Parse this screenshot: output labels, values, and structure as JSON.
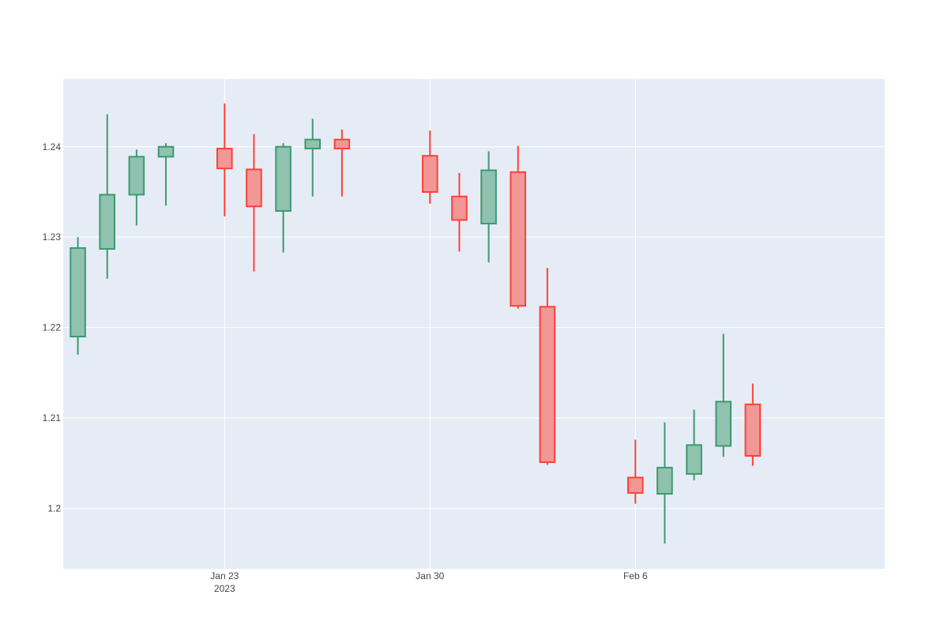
{
  "chart_data": {
    "type": "candlestick",
    "title": "",
    "xlabel": "",
    "ylabel": "",
    "x_ticks": [
      {
        "date": "2023-01-23",
        "label": "Jan 23",
        "sublabel": "2023"
      },
      {
        "date": "2023-01-30",
        "label": "Jan 30",
        "sublabel": ""
      },
      {
        "date": "2023-02-06",
        "label": "Feb 6",
        "sublabel": ""
      }
    ],
    "y_ticks": [
      {
        "value": 1.2,
        "label": "1.2"
      },
      {
        "value": 1.21,
        "label": "1.21"
      },
      {
        "value": 1.22,
        "label": "1.22"
      },
      {
        "value": 1.23,
        "label": "1.23"
      },
      {
        "value": 1.24,
        "label": "1.24"
      }
    ],
    "ylim": [
      1.1933,
      1.2475
    ],
    "xlim": [
      "2023-01-17T12:00",
      "2023-02-14T12:00"
    ],
    "grid": true,
    "colors": {
      "increasing_line": "#3d9970",
      "increasing_fill": "#8fc2af",
      "decreasing_line": "#ff4136",
      "decreasing_fill": "#f19796",
      "plot_bg": "#e5ecf6",
      "grid": "#ffffff"
    },
    "series": [
      {
        "date": "2023-01-18",
        "open": 1.219,
        "high": 1.23,
        "low": 1.217,
        "close": 1.2288
      },
      {
        "date": "2023-01-19",
        "open": 1.2287,
        "high": 1.2436,
        "low": 1.2254,
        "close": 1.2347
      },
      {
        "date": "2023-01-20",
        "open": 1.2347,
        "high": 1.2397,
        "low": 1.2313,
        "close": 1.2389
      },
      {
        "date": "2023-01-21",
        "open": 1.2389,
        "high": 1.2404,
        "low": 1.2335,
        "close": 1.24
      },
      {
        "date": "2023-01-23",
        "open": 1.2398,
        "high": 1.2448,
        "low": 1.2323,
        "close": 1.2376
      },
      {
        "date": "2023-01-24",
        "open": 1.2375,
        "high": 1.2414,
        "low": 1.2262,
        "close": 1.2334
      },
      {
        "date": "2023-01-25",
        "open": 1.2329,
        "high": 1.2404,
        "low": 1.2283,
        "close": 1.24
      },
      {
        "date": "2023-01-26",
        "open": 1.2398,
        "high": 1.2431,
        "low": 1.2345,
        "close": 1.2408
      },
      {
        "date": "2023-01-27",
        "open": 1.2408,
        "high": 1.2419,
        "low": 1.2345,
        "close": 1.2398
      },
      {
        "date": "2023-01-30",
        "open": 1.239,
        "high": 1.2418,
        "low": 1.2337,
        "close": 1.235
      },
      {
        "date": "2023-01-31",
        "open": 1.2345,
        "high": 1.2371,
        "low": 1.2284,
        "close": 1.2319
      },
      {
        "date": "2023-02-01",
        "open": 1.2315,
        "high": 1.2395,
        "low": 1.2272,
        "close": 1.2374
      },
      {
        "date": "2023-02-02",
        "open": 1.2372,
        "high": 1.2401,
        "low": 1.2221,
        "close": 1.2224
      },
      {
        "date": "2023-02-03",
        "open": 1.2223,
        "high": 1.2266,
        "low": 1.2048,
        "close": 1.2051
      },
      {
        "date": "2023-02-06",
        "open": 1.2034,
        "high": 1.2076,
        "low": 1.2005,
        "close": 1.2017
      },
      {
        "date": "2023-02-07",
        "open": 1.2016,
        "high": 1.2095,
        "low": 1.1961,
        "close": 1.2045
      },
      {
        "date": "2023-02-08",
        "open": 1.2038,
        "high": 1.2109,
        "low": 1.2031,
        "close": 1.207
      },
      {
        "date": "2023-02-09",
        "open": 1.2069,
        "high": 1.2193,
        "low": 1.2057,
        "close": 1.2118
      },
      {
        "date": "2023-02-10",
        "open": 1.2115,
        "high": 1.2138,
        "low": 1.2047,
        "close": 1.2058
      }
    ]
  }
}
